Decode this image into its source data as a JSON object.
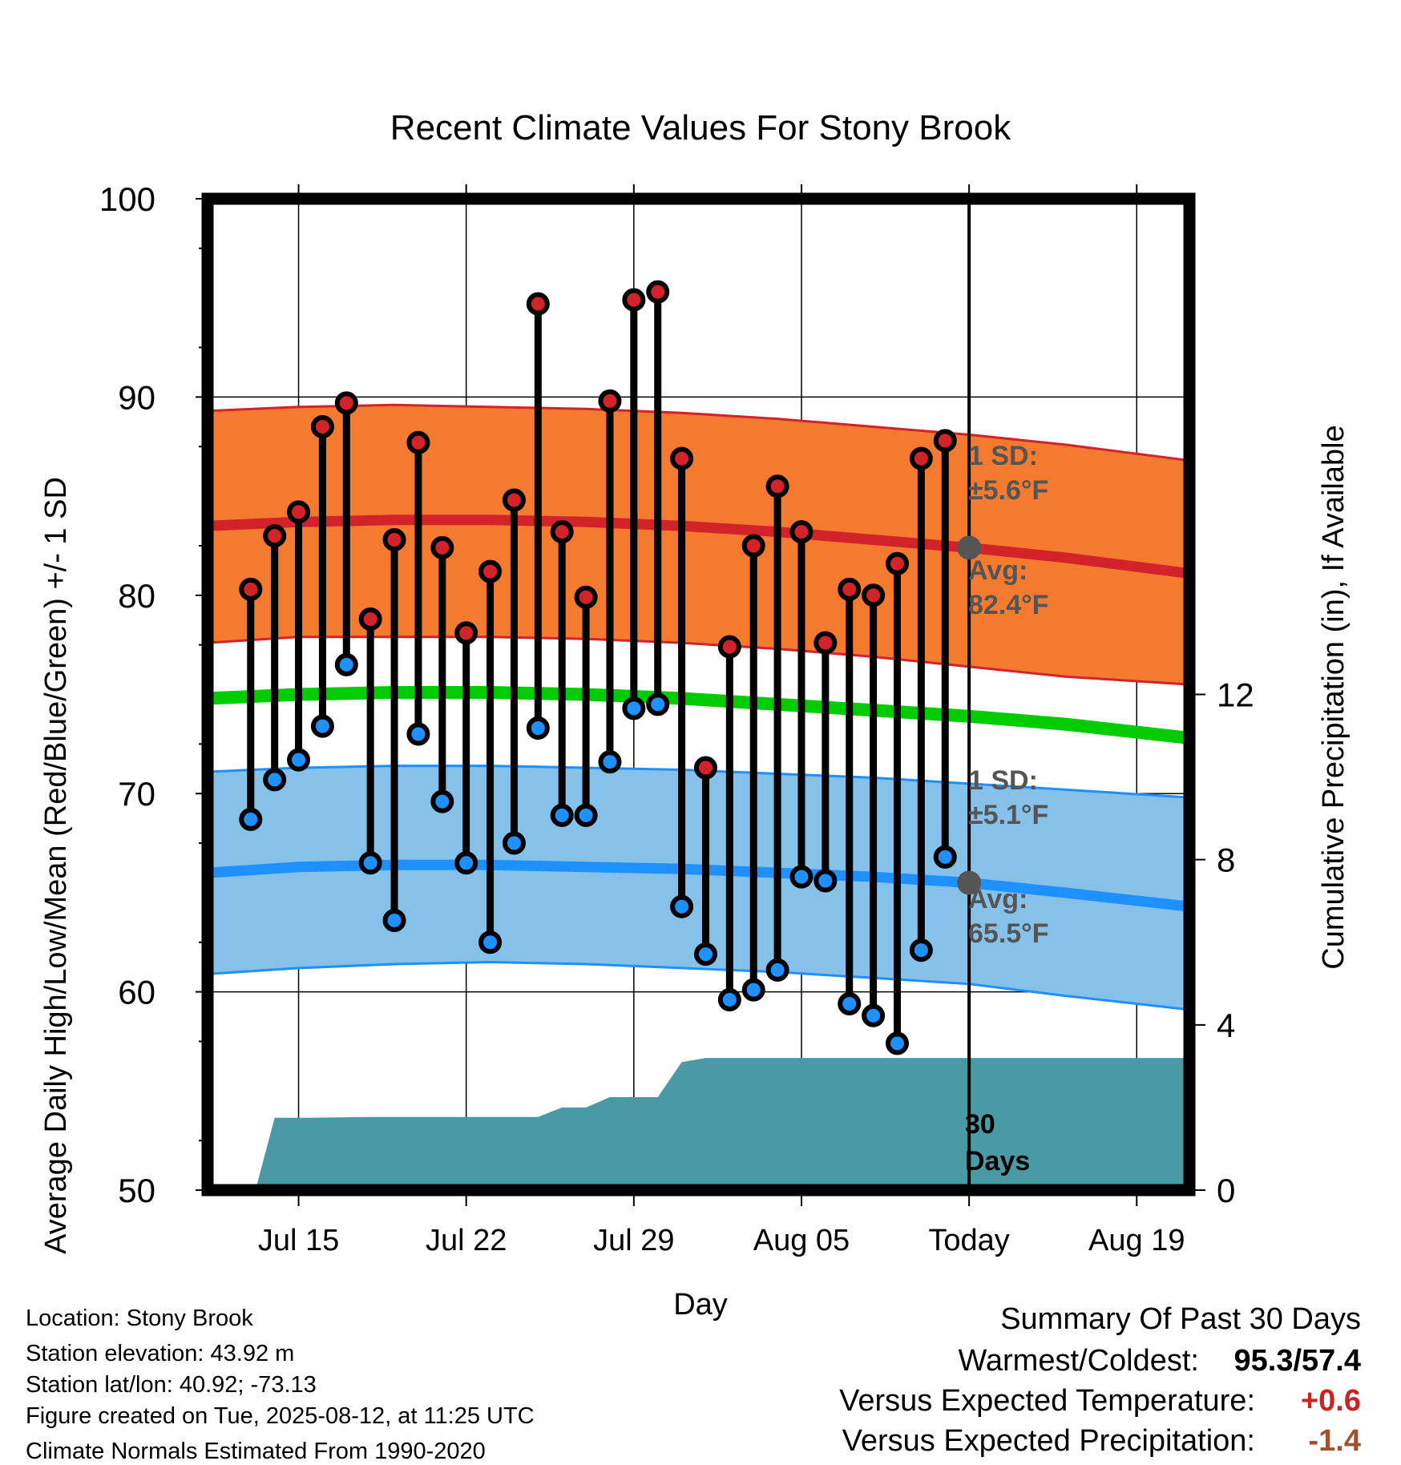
{
  "chart_data": {
    "type": "line",
    "title": "Recent Climate Values For Stony Brook",
    "xlabel": "Day",
    "ylabel": "Average Daily High/Low/Mean (Red/Blue/Green) +/- 1 SD",
    "y2label": "Cumulative Precipitation (in), If Available",
    "ylim": [
      50,
      100
    ],
    "y2lim": [
      0,
      24
    ],
    "grid": true,
    "x_range_day_of_year": [
      192.2,
      233.2
    ],
    "y_ticks": [
      "50",
      "60",
      "70",
      "80",
      "90",
      "100"
    ],
    "y2_ticks": [
      "0",
      "4",
      "8",
      "12"
    ],
    "x_ticks": [
      {
        "label": "Jul 15",
        "doy": 196
      },
      {
        "label": "Jul 22",
        "doy": 203
      },
      {
        "label": "Jul 29",
        "doy": 210
      },
      {
        "label": "Aug 05",
        "doy": 217
      },
      {
        "label": "Today",
        "doy": 224
      },
      {
        "label": "Aug 19",
        "doy": 231
      }
    ],
    "today_doy": 224,
    "days": [
      "Jul 13",
      "Jul 14",
      "Jul 15",
      "Jul 16",
      "Jul 17",
      "Jul 18",
      "Jul 19",
      "Jul 20",
      "Jul 21",
      "Jul 22",
      "Jul 23",
      "Jul 24",
      "Jul 25",
      "Jul 26",
      "Jul 27",
      "Jul 28",
      "Jul 29",
      "Jul 30",
      "Jul 31",
      "Aug 01",
      "Aug 02",
      "Aug 03",
      "Aug 04",
      "Aug 05",
      "Aug 06",
      "Aug 07",
      "Aug 08",
      "Aug 09",
      "Aug 10",
      "Aug 11"
    ],
    "series": [
      {
        "name": "High",
        "values": [
          80.3,
          83.0,
          84.2,
          88.5,
          89.7,
          78.8,
          82.8,
          87.7,
          82.4,
          78.1,
          81.2,
          84.8,
          94.7,
          83.2,
          79.9,
          89.8,
          94.9,
          95.3,
          86.9,
          71.3,
          77.4,
          82.5,
          85.5,
          83.2,
          77.6,
          80.3,
          80.0,
          81.6,
          86.9,
          87.8
        ]
      },
      {
        "name": "Low",
        "values": [
          68.7,
          70.7,
          71.7,
          73.4,
          76.5,
          66.5,
          63.6,
          73.0,
          69.6,
          66.5,
          62.5,
          67.5,
          73.3,
          68.9,
          68.9,
          71.6,
          74.3,
          74.5,
          64.3,
          61.9,
          59.6,
          60.1,
          61.1,
          65.8,
          65.6,
          59.4,
          58.8,
          57.4,
          62.1,
          66.8
        ]
      }
    ],
    "normals": {
      "doy": [
        192.2,
        196,
        200,
        204,
        208,
        212,
        216,
        220,
        224,
        228,
        233.2
      ],
      "high_avg": [
        83.5,
        83.7,
        83.8,
        83.8,
        83.7,
        83.5,
        83.2,
        82.8,
        82.4,
        81.9,
        81.1
      ],
      "high_sd_upper": [
        89.3,
        89.5,
        89.6,
        89.5,
        89.4,
        89.2,
        88.9,
        88.5,
        88.1,
        87.6,
        86.8
      ],
      "high_sd_lower": [
        77.6,
        77.9,
        77.9,
        77.9,
        77.8,
        77.6,
        77.3,
        76.9,
        76.4,
        75.9,
        75.5
      ],
      "mean_avg": [
        74.8,
        75.0,
        75.1,
        75.1,
        75.0,
        74.8,
        74.5,
        74.2,
        73.9,
        73.5,
        72.8
      ],
      "low_avg": [
        66.0,
        66.3,
        66.4,
        66.4,
        66.3,
        66.2,
        66.0,
        65.8,
        65.5,
        65.0,
        64.3
      ],
      "low_sd_upper": [
        71.1,
        71.3,
        71.4,
        71.4,
        71.3,
        71.2,
        71.0,
        70.8,
        70.5,
        70.2,
        69.8
      ],
      "low_sd_lower": [
        60.9,
        61.2,
        61.4,
        61.5,
        61.4,
        61.2,
        61.0,
        60.7,
        60.4,
        59.8,
        59.1
      ]
    },
    "precip_cumulative": {
      "doy": [
        194.2,
        195.0,
        196.0,
        199.0,
        203.0,
        206.0,
        207.0,
        208.0,
        209.0,
        210.0,
        211.0,
        212.0,
        213.0,
        217.0,
        224.0,
        233.2
      ],
      "values": [
        0.0,
        1.75,
        1.75,
        1.77,
        1.77,
        1.77,
        2.0,
        2.0,
        2.25,
        2.25,
        2.25,
        3.1,
        3.2,
        3.2,
        3.2,
        3.2
      ]
    },
    "annotations": {
      "high_sd": "1 SD:",
      "high_sd_value": "±5.6°F",
      "high_avg_label": "Avg:",
      "high_avg_value": "82.4°F",
      "low_sd": "1 SD:",
      "low_sd_value": "±5.1°F",
      "low_avg_label": "Avg:",
      "low_avg_value": "65.5°F",
      "window_line1": "30",
      "window_line2": "Days"
    },
    "colors": {
      "high_band": "#f47a30",
      "high_line": "#d2232a",
      "high_marker": "#d2232a",
      "low_band": "#85c1e8",
      "low_line": "#1e90ff",
      "low_marker": "#1e90ff",
      "mean_line": "#00cc00",
      "precip": "#4a9aa5",
      "today_marker": "#555555",
      "positive_temp": "#cc2222",
      "negative_precip": "#a0522d"
    }
  },
  "footer": {
    "location": "Location: Stony Brook",
    "elevation": "Station elevation: 43.92 m",
    "latlon": "Station lat/lon: 40.92; -73.13",
    "created": "Figure created on Tue, 2025-08-12, at 11:25 UTC",
    "normals": "Climate Normals Estimated From 1990-2020"
  },
  "summary": {
    "title": "Summary Of Past 30 Days",
    "warm_cold_label": "Warmest/Coldest:",
    "warm_cold_value": "95.3/57.4",
    "temp_label": "Versus Expected Temperature:",
    "temp_value": "+0.6",
    "precip_label": "Versus Expected Precipitation:",
    "precip_value": "-1.4"
  }
}
